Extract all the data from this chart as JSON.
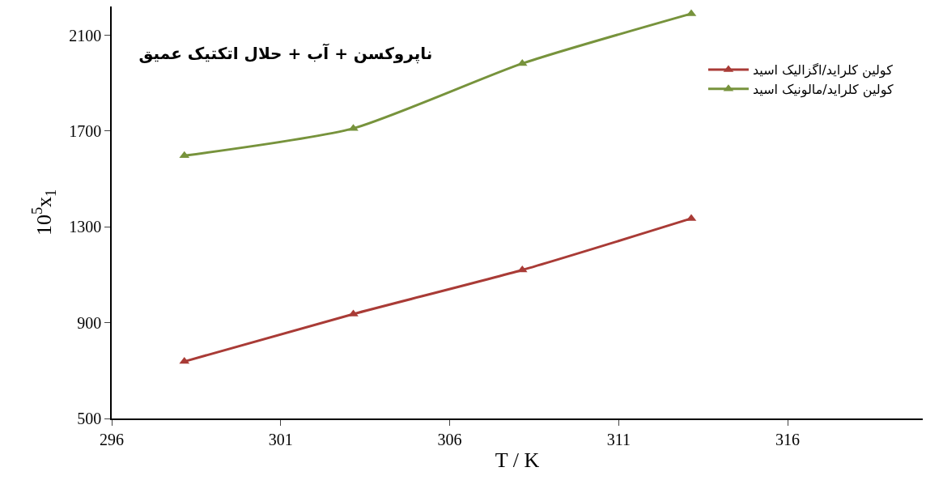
{
  "chart_data": {
    "type": "line",
    "title": "ناپروکسن + آب + حلال اتکتیک عمیق",
    "xlabel": "T / K",
    "ylabel": "10$^{5}$x$_{1}$",
    "x": [
      298.15,
      303.15,
      308.15,
      313.15
    ],
    "series": [
      {
        "name": "کولین کلراید/اگزالیک اسید",
        "color": "#a93b36",
        "values": [
          738,
          936,
          1120,
          1335
        ]
      },
      {
        "name": "کولین کلراید/مالونیک اسید",
        "color": "#77933c",
        "values": [
          1597,
          1711,
          1982,
          2190
        ]
      }
    ],
    "xlim": [
      296,
      320
    ],
    "xticks": [
      296,
      301,
      306,
      311,
      316
    ],
    "ylim": [
      500,
      2220
    ],
    "yticks": [
      500,
      900,
      1300,
      1700,
      2100
    ],
    "grid": false,
    "legend": "right",
    "marker": "triangle",
    "line_style": "solid"
  }
}
